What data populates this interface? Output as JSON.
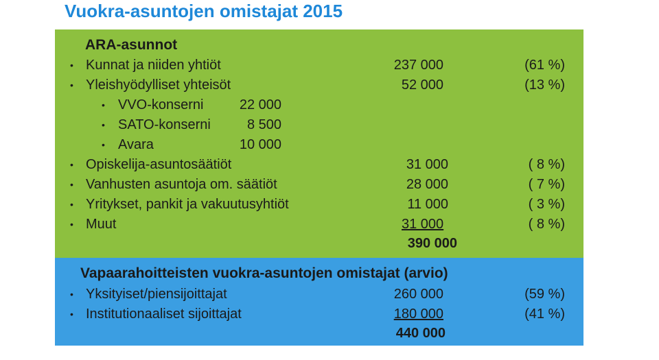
{
  "title": "Vuokra-asuntojen omistajat 2015",
  "ara": {
    "heading": "ARA-asunnot",
    "rows": [
      {
        "label": "Kunnat ja niiden yhtiöt",
        "value": "237 000",
        "pct": "(61 %)"
      },
      {
        "label": "Yleishyödylliset yhteisöt",
        "value": "52 000",
        "pct": "(13 %)"
      }
    ],
    "subrows": [
      {
        "label": "VVO-konserni",
        "value": "22 000"
      },
      {
        "label": "SATO-konserni",
        "value": "8 500"
      },
      {
        "label": "Avara",
        "value": "10 000"
      }
    ],
    "rows2": [
      {
        "label": "Opiskelija-asuntosäätiöt",
        "value": "31 000",
        "pct": "( 8 %)"
      },
      {
        "label": "Vanhusten asuntoja om. säätiöt",
        "value": "28 000",
        "pct": "( 7 %)"
      },
      {
        "label": "Yritykset, pankit ja vakuutusyhtiöt",
        "value": "11 000",
        "pct": "( 3 %)"
      },
      {
        "label": "Muut",
        "value": "31 000",
        "pct": "( 8 %)"
      }
    ],
    "total": "390 000"
  },
  "private": {
    "heading": "Vapaarahoitteisten vuokra-asuntojen omistajat (arvio)",
    "rows": [
      {
        "label": "Yksityiset/piensijoittajat",
        "value": "260 000",
        "pct": "(59 %)"
      },
      {
        "label": "Institutionaaliset sijoittajat",
        "value": "180 000",
        "pct": "(41 %)"
      }
    ],
    "total": "440 000"
  },
  "colors": {
    "green": "#8dc03f",
    "blue": "#3b9ee2",
    "title": "#1e88d8"
  }
}
